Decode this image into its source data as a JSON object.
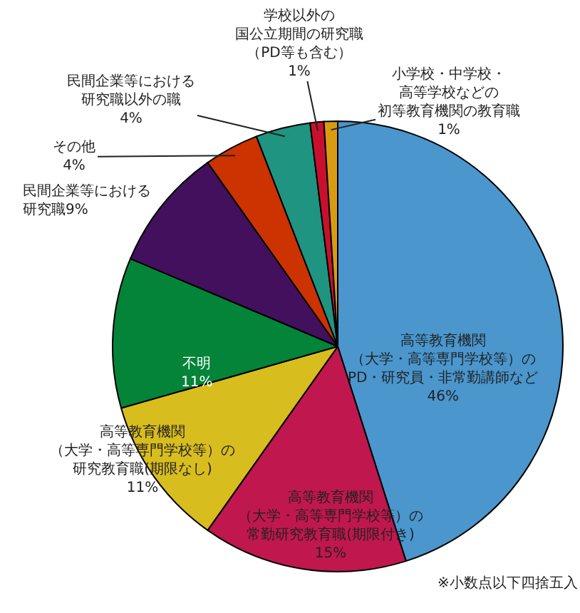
{
  "chart_data": {
    "type": "pie",
    "categories": [
      "高等教育機関（大学・高等専門学校等）のPD・研究員・非常勤講師など",
      "高等教育機関（大学・高等専門学校等）の常勤研究教育職(期限付き)",
      "高等教育機関（大学・高等専門学校等）の研究教育職(期限なし)",
      "不明",
      "民間企業等における研究職",
      "その他",
      "民間企業等における研究職以外の職",
      "学校以外の国公立期間の研究職（PD等も含む）",
      "小学校・中学校・高等学校などの初等教育機関の教育職"
    ],
    "values": [
      46,
      15,
      11,
      11,
      9,
      4,
      4,
      1,
      1
    ],
    "value_labels": [
      "46%",
      "15%",
      "11%",
      "11%",
      "9%",
      "4%",
      "4%",
      "1%",
      "1%"
    ],
    "colors": [
      "#4a96cd",
      "#c0174e",
      "#d8bd1e",
      "#048438",
      "#43105e",
      "#cc3300",
      "#1f9480",
      "#c8102e",
      "#d89b12"
    ],
    "legend": false,
    "annotations": [
      "※小数点以下四捨五入"
    ]
  }
}
